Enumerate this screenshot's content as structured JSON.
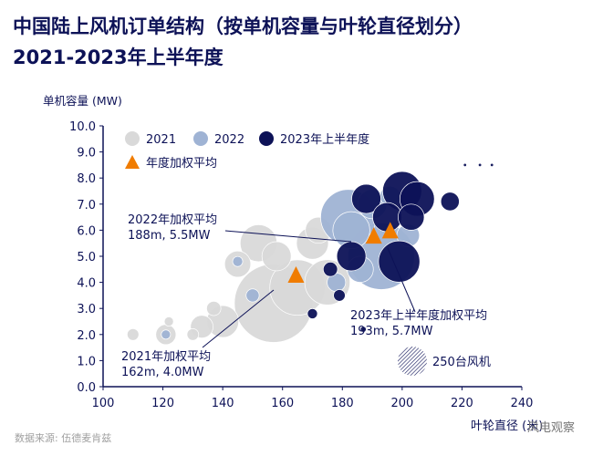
{
  "title_line1": "中国陆上风机订单结构（按单机容量与叶轮直径划分）",
  "title_line2": "2021-2023年上半年度",
  "source": "数据来源: 伍德麦肯兹",
  "watermark": "风电观察",
  "chart_data": {
    "type": "scatter",
    "ylabel": "单机容量 (MW)",
    "xlabel": "叶轮直径 (米)",
    "xlim": [
      100,
      240
    ],
    "ylim": [
      0,
      10
    ],
    "xticks": [
      "100",
      "120",
      "140",
      "160",
      "180",
      "200",
      "220",
      "240"
    ],
    "yticks": [
      "0.0",
      "1.0",
      "2.0",
      "3.0",
      "4.0",
      "5.0",
      "6.0",
      "7.0",
      "8.0",
      "9.0",
      "10.0"
    ],
    "legend": {
      "placement": "top-left",
      "items": [
        "2021",
        "2022",
        "2023年上半年度",
        "年度加权平均"
      ]
    },
    "size_legend": "250台风机",
    "size_reference": 250,
    "colors": {
      "2021": "#d9d9d9",
      "2022": "#9fb3d4",
      "2023": "#0d1257",
      "average": "#f07c00"
    },
    "series": [
      {
        "name": "2021",
        "points": [
          [
            157,
            3.2,
            1800
          ],
          [
            165,
            3.8,
            900
          ],
          [
            175,
            4.0,
            600
          ],
          [
            152,
            5.5,
            400
          ],
          [
            170,
            5.5,
            300
          ],
          [
            158,
            5.0,
            250
          ],
          [
            140,
            2.5,
            300
          ],
          [
            145,
            4.7,
            200
          ],
          [
            133,
            2.3,
            150
          ],
          [
            121,
            2.0,
            120
          ],
          [
            130,
            2.0,
            40
          ],
          [
            110,
            2.0,
            40
          ],
          [
            137,
            3.0,
            60
          ],
          [
            122,
            2.5,
            25
          ],
          [
            172,
            6.0,
            200
          ]
        ]
      },
      {
        "name": "2022",
        "points": [
          [
            193,
            5.0,
            1300
          ],
          [
            182,
            6.5,
            900
          ],
          [
            183,
            6.0,
            400
          ],
          [
            190,
            7.0,
            250
          ],
          [
            178,
            4.0,
            100
          ],
          [
            150,
            3.5,
            50
          ],
          [
            121,
            2.0,
            25
          ],
          [
            145,
            4.8,
            30
          ],
          [
            186,
            4.5,
            200
          ],
          [
            202,
            5.8,
            150
          ],
          [
            196,
            7.3,
            120
          ]
        ]
      },
      {
        "name": "2023年上半年度",
        "points": [
          [
            200,
            7.5,
            450
          ],
          [
            205,
            7.2,
            350
          ],
          [
            216,
            7.1,
            100
          ],
          [
            199,
            4.8,
            500
          ],
          [
            188,
            7.2,
            250
          ],
          [
            176,
            4.5,
            60
          ],
          [
            170,
            2.8,
            30
          ],
          [
            183,
            5.0,
            250
          ],
          [
            195,
            6.5,
            250
          ],
          [
            203,
            6.5,
            200
          ],
          [
            179,
            3.5,
            40
          ],
          [
            187,
            2.2,
            10
          ],
          [
            221,
            8.5,
            3
          ],
          [
            226,
            8.5,
            3
          ],
          [
            230,
            8.5,
            3
          ]
        ]
      }
    ],
    "averages": [
      {
        "label": "2021年加权平均",
        "value": "162m, 4.0MW",
        "x": 164.5,
        "y": 4.3
      },
      {
        "label": "2022年加权平均",
        "value": "188m, 5.5MW",
        "x": 190.5,
        "y": 5.8
      },
      {
        "label": "2023年上半年度加权平均",
        "value": "193m, 5.7MW",
        "x": 196,
        "y": 6.0
      }
    ]
  }
}
